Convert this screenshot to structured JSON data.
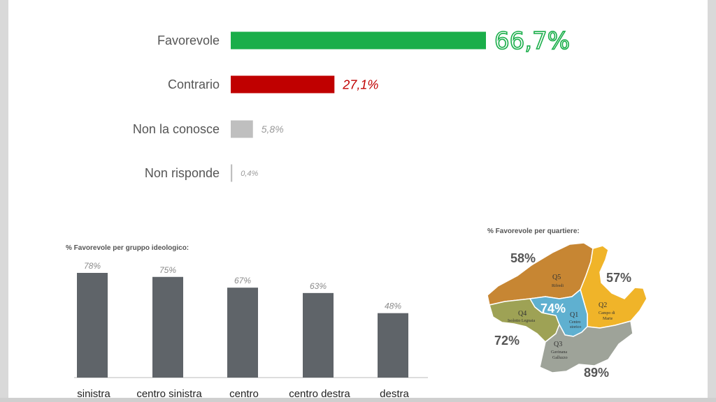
{
  "colors": {
    "favorevole": "#1aae4a",
    "contrario": "#c00000",
    "grey_bar": "#bfbfbf",
    "column": "#5f6469",
    "q1": "#5fb0d0",
    "q2": "#f0b429",
    "q3": "#9ea399",
    "q4": "#9ea255",
    "q5": "#c78633"
  },
  "chart_data": [
    {
      "type": "bar",
      "orientation": "horizontal",
      "categories": [
        "Favorevole",
        "Contrario",
        "Non la conosce",
        "Non risponde"
      ],
      "values": [
        66.7,
        27.1,
        5.8,
        0.4
      ],
      "value_labels": [
        "66,7%",
        "27,1%",
        "5,8%",
        "0,4%"
      ],
      "xlim": [
        0,
        66.7
      ]
    },
    {
      "type": "bar",
      "title": "% Favorevole per gruppo ideologico:",
      "categories": [
        "sinistra",
        "centro sinistra",
        "centro",
        "centro destra",
        "destra"
      ],
      "values": [
        78,
        75,
        67,
        63,
        48
      ],
      "value_labels": [
        "78%",
        "75%",
        "67%",
        "63%",
        "48%"
      ],
      "ylim": [
        0,
        78
      ]
    },
    {
      "type": "map",
      "title": "% Favorevole per quartiere:",
      "regions": [
        {
          "code": "Q1",
          "name": "Centro storico",
          "value": 74,
          "label": "74%"
        },
        {
          "code": "Q2",
          "name": "Campo di Marte",
          "value": 57,
          "label": "57%"
        },
        {
          "code": "Q3",
          "name": "Gavinana Galluzzo",
          "value": 89,
          "label": "89%"
        },
        {
          "code": "Q4",
          "name": "Isolotto Legnaia",
          "value": 72,
          "label": "72%"
        },
        {
          "code": "Q5",
          "name": "Rifredi",
          "value": 58,
          "label": "58%"
        }
      ]
    }
  ],
  "map_labels": {
    "q1_name_1": "Centro",
    "q1_name_2": "storico",
    "q2_name_1": "Campo di",
    "q2_name_2": "Marte",
    "q3_name_1": "Gavinana",
    "q3_name_2": "Galluzzo",
    "q4_name_1": "Isolotto Legnaia",
    "q5_name_1": "Rifredi"
  }
}
